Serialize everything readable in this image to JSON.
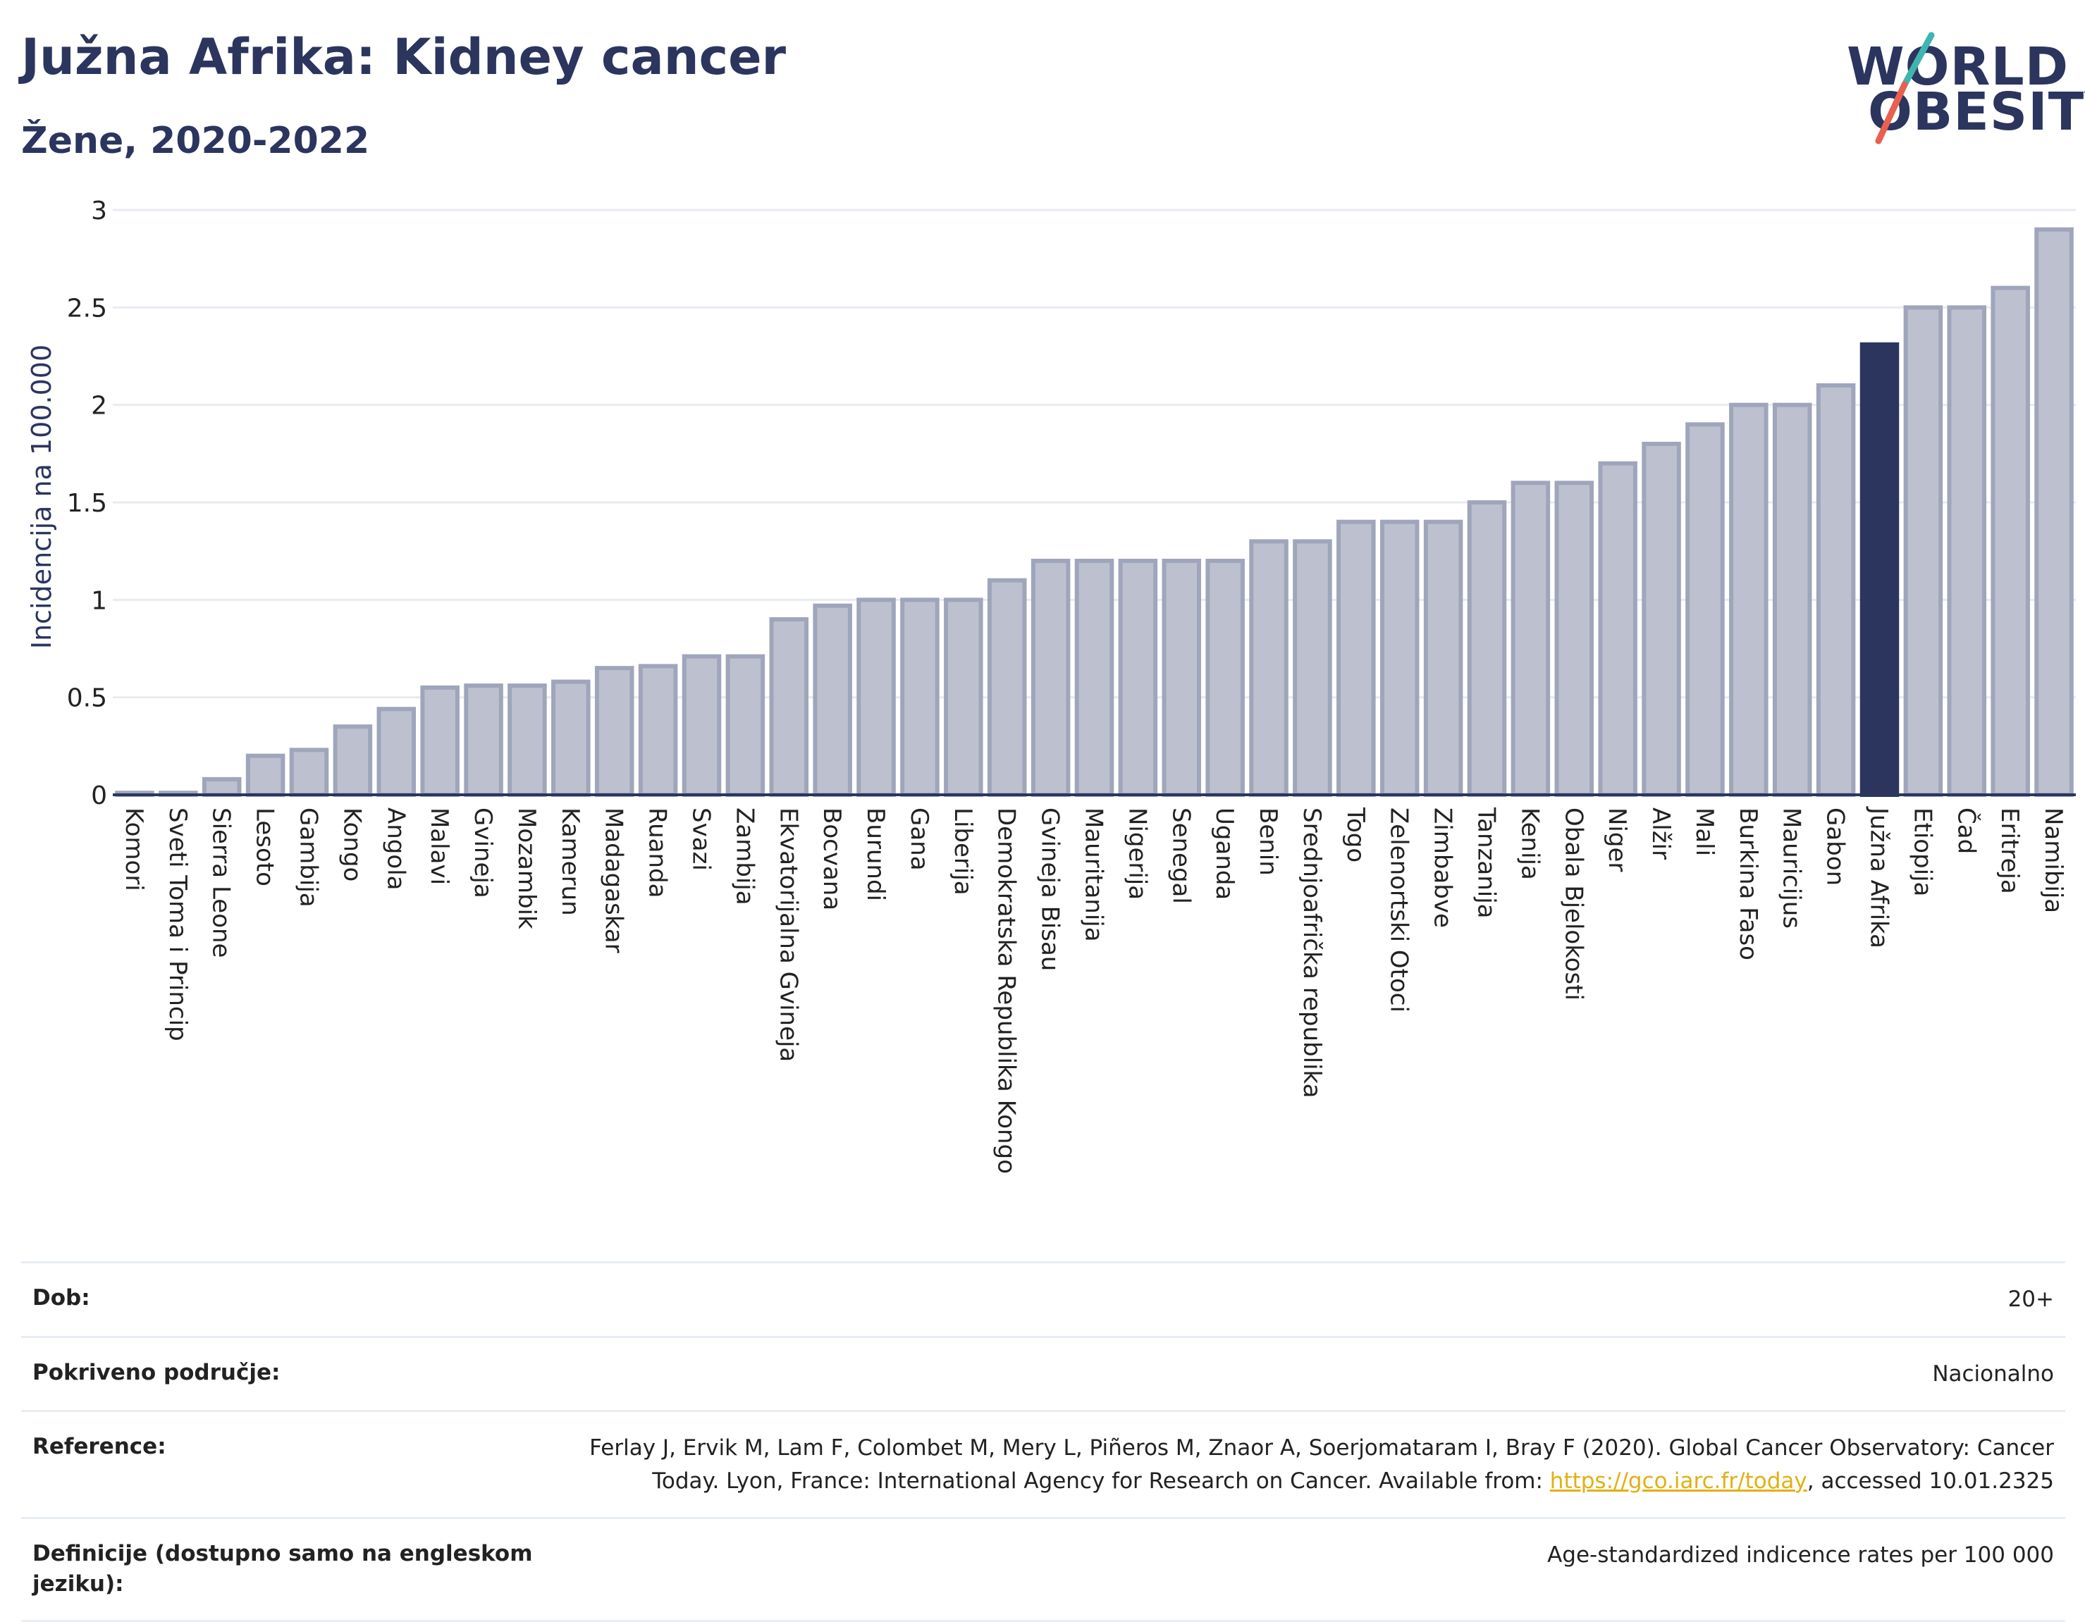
{
  "header": {
    "title": "Južna Afrika: Kidney cancer",
    "subtitle": "Žene, 2020-2022"
  },
  "logo": {
    "line1": "WORLD",
    "line2": "OBESITY"
  },
  "colors": {
    "bar": "#bdc1cf",
    "bar_border": "#9fa5bb",
    "highlight": "#2b355e",
    "grid": "#e7ebf0",
    "axis": "#2b355e"
  },
  "chart_data": {
    "type": "bar",
    "ylabel": "Incidencija na 100.000",
    "ylim": [
      0,
      3
    ],
    "yticks": [
      "0",
      "0.5",
      "1",
      "1.5",
      "2",
      "2.5",
      "3"
    ],
    "highlight": "Južna Afrika",
    "categories": [
      "Komori",
      "Sveti Toma i Princip",
      "Sierra Leone",
      "Lesoto",
      "Gambija",
      "Kongo",
      "Angola",
      "Malavi",
      "Gvineja",
      "Mozambik",
      "Kamerun",
      "Madagaskar",
      "Ruanda",
      "Svazi",
      "Zambija",
      "Ekvatorijalna Gvineja",
      "Bocvana",
      "Burundi",
      "Gana",
      "Liberija",
      "Demokratska Republika Kongo",
      "Gvineja Bisau",
      "Mauritanija",
      "Nigerija",
      "Senegal",
      "Uganda",
      "Benin",
      "Srednjoafrička republika",
      "Togo",
      "Zelenortski Otoci",
      "Zimbabve",
      "Tanzanija",
      "Kenija",
      "Obala Bjelokosti",
      "Niger",
      "Alžir",
      "Mali",
      "Burkina Faso",
      "Mauricijus",
      "Gabon",
      "Južna Afrika",
      "Etiopija",
      "Čad",
      "Eritreja",
      "Namibija"
    ],
    "values": [
      0.01,
      0.01,
      0.08,
      0.2,
      0.23,
      0.35,
      0.44,
      0.55,
      0.56,
      0.56,
      0.58,
      0.65,
      0.66,
      0.71,
      0.71,
      0.9,
      0.97,
      1.0,
      1.0,
      1.0,
      1.1,
      1.2,
      1.2,
      1.2,
      1.2,
      1.2,
      1.3,
      1.3,
      1.4,
      1.4,
      1.4,
      1.5,
      1.6,
      1.6,
      1.7,
      1.8,
      1.9,
      2.0,
      2.0,
      2.1,
      2.31,
      2.5,
      2.5,
      2.6,
      2.9
    ]
  },
  "info": {
    "age_label": "Dob:",
    "age_value": "20+",
    "coverage_label": "Pokriveno područje:",
    "coverage_value": "Nacionalno",
    "reference_label": "Reference:",
    "reference_text_1": "Ferlay J, Ervik M, Lam F, Colombet M, Mery L, Piñeros M, Znaor A, Soerjomataram I, Bray F (2020). Global Cancer Observatory: Cancer Today. Lyon, France: International Agency for Research on Cancer. Available from: ",
    "reference_link": "https://gco.iarc.fr/today",
    "reference_text_2": ", accessed 10.01.2325",
    "definitions_label": "Definicije (dostupno samo na engleskom jeziku):",
    "definitions_value": "Age-standardized indicence rates per 100 000"
  }
}
